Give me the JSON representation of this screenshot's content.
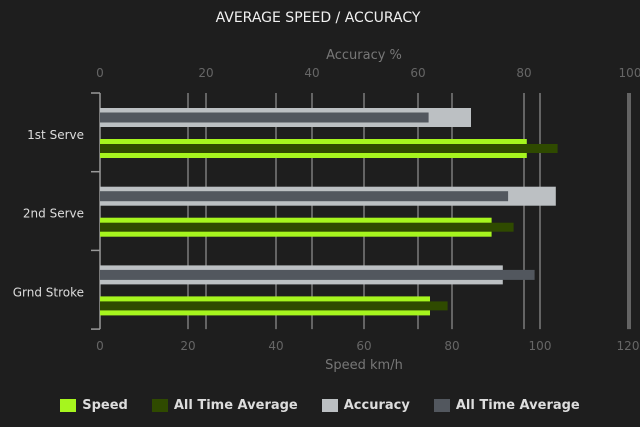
{
  "chart_data": {
    "type": "bar",
    "orientation": "horizontal",
    "title": "AVERAGE SPEED / ACCURACY",
    "categories": [
      "1st Serve",
      "2nd Serve",
      "Grnd Stroke"
    ],
    "x_top_axis": {
      "label": "Accuracy %",
      "range": [
        0,
        100
      ],
      "ticks": [
        "0",
        "20",
        "40",
        "60",
        "80",
        "100"
      ]
    },
    "x_bottom_axis": {
      "label": "Speed km/h",
      "range": [
        0,
        120
      ],
      "ticks": [
        "0",
        "20",
        "40",
        "60",
        "80",
        "100",
        "120"
      ]
    },
    "grid": true,
    "legend_placement": "bottom",
    "series": [
      {
        "name": "Accuracy",
        "axis": "accuracy",
        "color": "#bcc0c3",
        "values": [
          70,
          86,
          76
        ]
      },
      {
        "name": "All Time Average",
        "axis": "accuracy",
        "color": "#52575e",
        "values": [
          62,
          77,
          82
        ]
      },
      {
        "name": "Speed",
        "axis": "speed",
        "color": "#a6f51e",
        "values": [
          97,
          89,
          75
        ]
      },
      {
        "name": "All Time Average",
        "axis": "speed",
        "color": "#2f4a00",
        "values": [
          104,
          94,
          79
        ]
      }
    ]
  }
}
